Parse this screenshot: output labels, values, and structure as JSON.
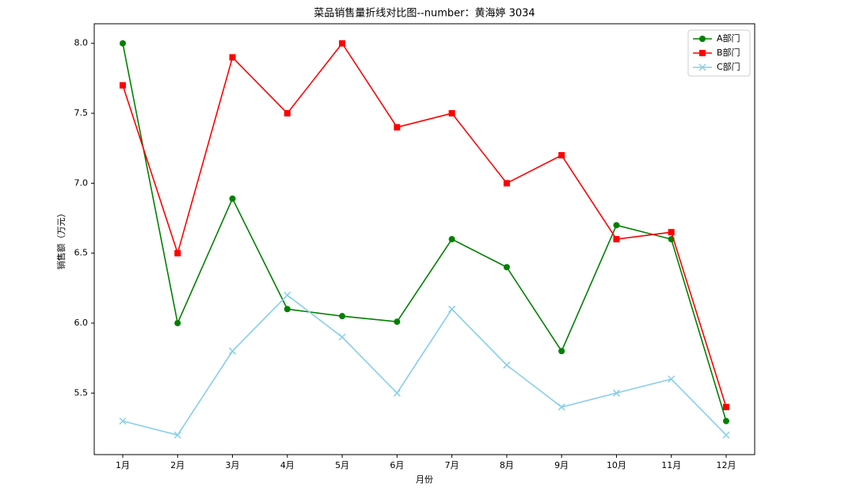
{
  "chart_data": {
    "type": "line",
    "title": "菜品销售量折线对比图--number：黄海婷 3034",
    "x_label": "月份",
    "y_label": "销售额（万元）",
    "categories": [
      "1月",
      "2月",
      "3月",
      "4月",
      "5月",
      "6月",
      "7月",
      "8月",
      "9月",
      "10月",
      "11月",
      "12月"
    ],
    "series": [
      {
        "name": "A部门",
        "color": "#008000",
        "marker": "circle",
        "values": [
          8.0,
          6.0,
          6.89,
          6.1,
          6.05,
          6.01,
          6.6,
          6.4,
          5.8,
          6.7,
          6.6,
          5.3
        ]
      },
      {
        "name": "B部门",
        "color": "#ff0000",
        "marker": "square",
        "values": [
          7.7,
          6.5,
          7.9,
          7.5,
          8.0,
          7.4,
          7.5,
          7.0,
          7.2,
          6.6,
          6.65,
          5.4
        ]
      },
      {
        "name": "C部门",
        "color": "#87ceeb",
        "marker": "x",
        "values": [
          5.3,
          5.2,
          5.8,
          6.2,
          5.9,
          5.5,
          6.1,
          5.7,
          5.4,
          5.5,
          5.6,
          5.2
        ]
      }
    ],
    "ylim": [
      5.06,
      8.14
    ],
    "yticks": [
      5.5,
      {
        "value": 6,
        "label": "6.0"
      },
      6.5,
      {
        "value": 7,
        "label": "7.0"
      },
      7.5,
      {
        "value": 8,
        "label": "8.0"
      }
    ],
    "grid": false,
    "legend": "upper right"
  }
}
